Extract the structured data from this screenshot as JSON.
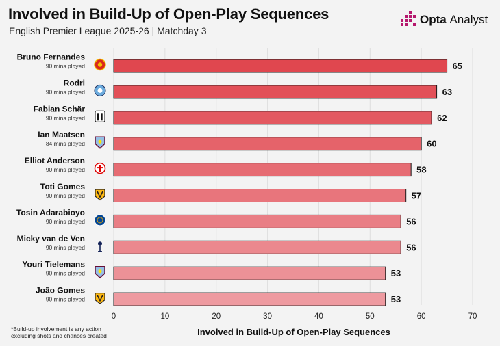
{
  "header": {
    "title": "Involved in Build-Up of Open-Play Sequences",
    "subtitle": "English Premier League 2025-26 | Matchday 3",
    "brand_bold": "Opta",
    "brand_light": "Analyst"
  },
  "footnote": {
    "line1": "*Build-up involvement is any action",
    "line2": "excluding shots and chances created"
  },
  "colors": {
    "bar_top": "#e0474f",
    "bar_bottom": "#ee9aa0",
    "bar_stroke": "#1a1a1a",
    "brand_magenta": "#b5176d"
  },
  "chart_data": {
    "type": "bar",
    "orientation": "horizontal",
    "xlabel": "Involved in Build-Up of Open-Play Sequences",
    "xlim": [
      0,
      70
    ],
    "xticks": [
      0,
      10,
      20,
      30,
      40,
      50,
      60,
      70
    ],
    "grid": "vertical",
    "categories": [
      "Bruno Fernandes",
      "Rodri",
      "Fabian Schär",
      "Ian Maatsen",
      "Elliot Anderson",
      "Toti Gomes",
      "Tosin Adarabioyo",
      "Micky van de Ven",
      "Youri Tielemans",
      "João Gomes"
    ],
    "subtitles": [
      "90 mins played",
      "90 mins played",
      "90 mins played",
      "84 mins played",
      "90 mins played",
      "90 mins played",
      "90 mins played",
      "90 mins played",
      "90 mins played",
      "90 mins played"
    ],
    "badges": [
      "manchester-united-badge-icon",
      "manchester-city-badge-icon",
      "newcastle-badge-icon",
      "aston-villa-badge-icon",
      "nottingham-forest-badge-icon",
      "wolves-badge-icon",
      "chelsea-badge-icon",
      "tottenham-badge-icon",
      "aston-villa-badge-icon",
      "wolves-badge-icon"
    ],
    "values": [
      65,
      63,
      62,
      60,
      58,
      57,
      56,
      56,
      53,
      53
    ]
  }
}
